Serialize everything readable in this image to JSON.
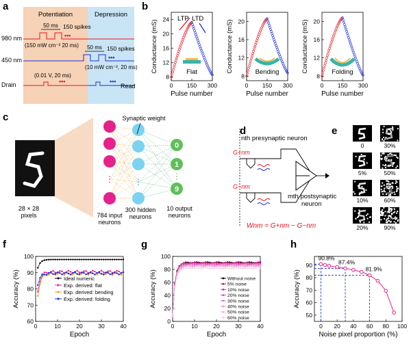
{
  "panel_labels": {
    "a": "a",
    "b": "b",
    "c": "c",
    "d": "d",
    "e": "e",
    "f": "f",
    "g": "g",
    "h": "h"
  },
  "colors": {
    "red": "#e8141b",
    "blue": "#1a2fd6",
    "pot_bg": "#f6d2b6",
    "dep_bg": "#c9e4f4",
    "magenta": "#e5218c",
    "cyan": "#7ad3f1",
    "green": "#5fbf5a",
    "orange": "#f39a1e",
    "ideal": "#000000"
  },
  "panel_a": {
    "potentiation": "Potentiation",
    "depression": "Depression",
    "row_980": "980 nm",
    "row_450": "450 nm",
    "row_drain": "Drain",
    "ms50_1": "50 ms",
    "spikes150_1": "150 spikes",
    "param_980": "(150 mW cm⁻² 20 ms)",
    "ms50_2": "50 ms",
    "spikes150_2": "150 spikes",
    "param_450": "(10 mW cm⁻², 20 ms)",
    "drain_param": "(0.01 V, 20 ms)",
    "read": "Read",
    "dots": "•••"
  },
  "panel_b": {
    "ylabel": "Conductance (mS)",
    "xlabel": "Pulse number",
    "ltp": "LTP",
    "ltd": "LTD",
    "subplots": [
      {
        "label": "Flat"
      },
      {
        "label": "Bending"
      },
      {
        "label": "Folding"
      }
    ],
    "xticks": [
      "0",
      "150",
      "300"
    ],
    "yticks": [
      "8",
      "12",
      "16",
      "20",
      "24"
    ]
  },
  "panel_c": {
    "synaptic_weight": "Synaptic weight",
    "input_size": "28 × 28",
    "input_unit": "pixels",
    "input_neurons": "784 input neurons",
    "hidden_neurons": "300 hidden neurons",
    "output_neurons": "10 output neurons",
    "outputs": [
      "0",
      "1",
      "9"
    ],
    "ellipsis": "⋮"
  },
  "panel_d": {
    "presyn": "nth presynaptic neuron",
    "postsyn": "mth postsynaptic neuron",
    "gplus": "G+nm",
    "gminus": "G−nm",
    "equation": "Wnm = G+nm − G−nm"
  },
  "panel_e": {
    "labels": [
      "0",
      "30%",
      "5%",
      "50%",
      "10%",
      "60%",
      "20%",
      "90%"
    ]
  },
  "panel_f": {
    "ylabel": "Accuracy (%)",
    "xlabel": "Epoch",
    "xticks": [
      "0",
      "10",
      "20",
      "30",
      "40"
    ],
    "yticks": [
      "60",
      "70",
      "80",
      "90",
      "100"
    ],
    "legend": [
      "Ideal numeric",
      "Exp. derived: flat",
      "Exp. derived: bending",
      "Exp. derived: folding"
    ]
  },
  "panel_g": {
    "ylabel": "Accuracy (%)",
    "xlabel": "Epoch",
    "xticks": [
      "0",
      "10",
      "20",
      "30",
      "40"
    ],
    "yticks": [
      "0",
      "20",
      "40",
      "60",
      "80",
      "100"
    ],
    "legend": [
      "Without noise",
      "5% noise",
      "10% noise",
      "20% noise",
      "30% noise",
      "40% noise",
      "50% noise",
      "60% noise"
    ]
  },
  "chart_data": [
    {
      "type": "scatter",
      "panel": "b",
      "subplot": "Flat",
      "xlim": [
        0,
        300
      ],
      "ylim": [
        7,
        26
      ],
      "series": [
        {
          "name": "LTP",
          "x": [
            0,
            50,
            100,
            150
          ],
          "values": [
            8,
            14.5,
            20,
            23.2
          ]
        },
        {
          "name": "LTD",
          "x": [
            150,
            200,
            250,
            300
          ],
          "values": [
            23.2,
            17,
            12,
            8.6
          ]
        }
      ]
    },
    {
      "type": "scatter",
      "panel": "b",
      "subplot": "Bending",
      "xlim": [
        0,
        300
      ],
      "ylim": [
        7,
        22
      ],
      "series": [
        {
          "values": [
            8,
            13,
            17.5,
            20.6
          ],
          "x": [
            0,
            50,
            100,
            150
          ]
        },
        {
          "values": [
            20.6,
            15,
            11,
            8.7
          ],
          "x": [
            150,
            200,
            250,
            300
          ]
        }
      ]
    },
    {
      "type": "scatter",
      "panel": "b",
      "subplot": "Folding",
      "xlim": [
        0,
        300
      ],
      "ylim": [
        7,
        22
      ],
      "series": [
        {
          "values": [
            8,
            13.5,
            18,
            20.8
          ],
          "x": [
            0,
            50,
            100,
            150
          ]
        },
        {
          "values": [
            20.8,
            15,
            11,
            8.2
          ],
          "x": [
            150,
            200,
            250,
            300
          ]
        }
      ]
    },
    {
      "type": "line",
      "panel": "f",
      "xlim": [
        0,
        40
      ],
      "ylim": [
        60,
        100
      ],
      "series": [
        {
          "name": "Ideal numeric",
          "final": 98.1,
          "start": 93
        },
        {
          "name": "Exp. derived: flat",
          "final": 90.5,
          "start": 78
        },
        {
          "name": "Exp. derived: bending",
          "final": 89.2,
          "start": 76
        },
        {
          "name": "Exp. derived: folding",
          "final": 89.6,
          "start": 83
        }
      ]
    },
    {
      "type": "line",
      "panel": "g",
      "xlim": [
        0,
        40
      ],
      "ylim": [
        0,
        100
      ],
      "series": [
        {
          "name": "Without noise",
          "final": 90.8
        },
        {
          "name": "5% noise",
          "final": 90.2
        },
        {
          "name": "10% noise",
          "final": 89.5
        },
        {
          "name": "20% noise",
          "final": 88.5
        },
        {
          "name": "30% noise",
          "final": 87.4
        },
        {
          "name": "40% noise",
          "final": 86.2
        },
        {
          "name": "50% noise",
          "final": 84.6
        },
        {
          "name": "60% noise",
          "final": 81.9
        }
      ]
    },
    {
      "type": "line",
      "panel": "h",
      "xlabel": "Noise pixel proportion (%)",
      "ylabel": "Accuracy (%)",
      "xlim": [
        -8,
        100
      ],
      "ylim": [
        45,
        97
      ],
      "xticks": [
        "0",
        "20",
        "40",
        "60",
        "80",
        "100"
      ],
      "yticks": [
        "50",
        "60",
        "70",
        "80",
        "90"
      ],
      "x": [
        0,
        5,
        10,
        20,
        30,
        40,
        50,
        60,
        70,
        80,
        90
      ],
      "values": [
        90.8,
        90.2,
        89.5,
        88.5,
        87.4,
        86.2,
        84.6,
        81.9,
        77.5,
        69.5,
        52
      ],
      "annotations": [
        "90.8%",
        "87.4%",
        "81.9%"
      ]
    }
  ]
}
